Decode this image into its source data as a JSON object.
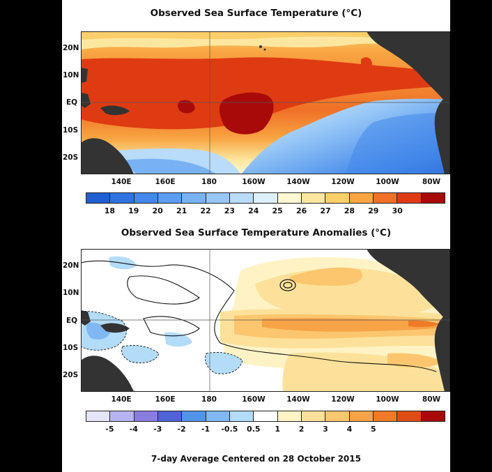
{
  "sst": {
    "title": "Observed Sea Surface Temperature (°C)",
    "lat_labels": [
      "20N",
      "10N",
      "EQ",
      "10S",
      "20S"
    ],
    "lon_labels": [
      "140E",
      "160E",
      "180",
      "160W",
      "140W",
      "120W",
      "100W",
      "80W"
    ],
    "colorbar": {
      "colors": [
        "#1f5fd1",
        "#2f73e0",
        "#4388ea",
        "#5b9df0",
        "#78b2f4",
        "#97c7f7",
        "#b9dcfa",
        "#ddeffc",
        "#fdf8d2",
        "#fde7a0",
        "#fccf6b",
        "#f8a542",
        "#ef7026",
        "#df3b12",
        "#a80a0a"
      ],
      "labels": [
        "18",
        "19",
        "20",
        "21",
        "22",
        "23",
        "24",
        "25",
        "26",
        "27",
        "28",
        "29",
        "30"
      ]
    }
  },
  "anom": {
    "title": "Observed Sea Surface Temperature Anomalies (°C)",
    "lat_labels": [
      "20N",
      "10N",
      "EQ",
      "10S",
      "20S"
    ],
    "lon_labels": [
      "140E",
      "160E",
      "180",
      "160W",
      "140W",
      "120W",
      "100W",
      "80W"
    ],
    "colorbar": {
      "colors": [
        "#e4e4fb",
        "#b8b3f1",
        "#8a7de0",
        "#4f63d6",
        "#5294ea",
        "#7fb8f2",
        "#b3dcf8",
        "#ffffff",
        "#fff3c6",
        "#fde19a",
        "#fbc66e",
        "#f8a347",
        "#ef7a29",
        "#de4d15",
        "#a80a0a"
      ],
      "labels": [
        "-5",
        "-4",
        "-3",
        "-2",
        "-1",
        "-0.5",
        "0.5",
        "1",
        "2",
        "3",
        "4",
        "5"
      ]
    }
  },
  "footer": "7-day Average Centered on 28 October 2015"
}
